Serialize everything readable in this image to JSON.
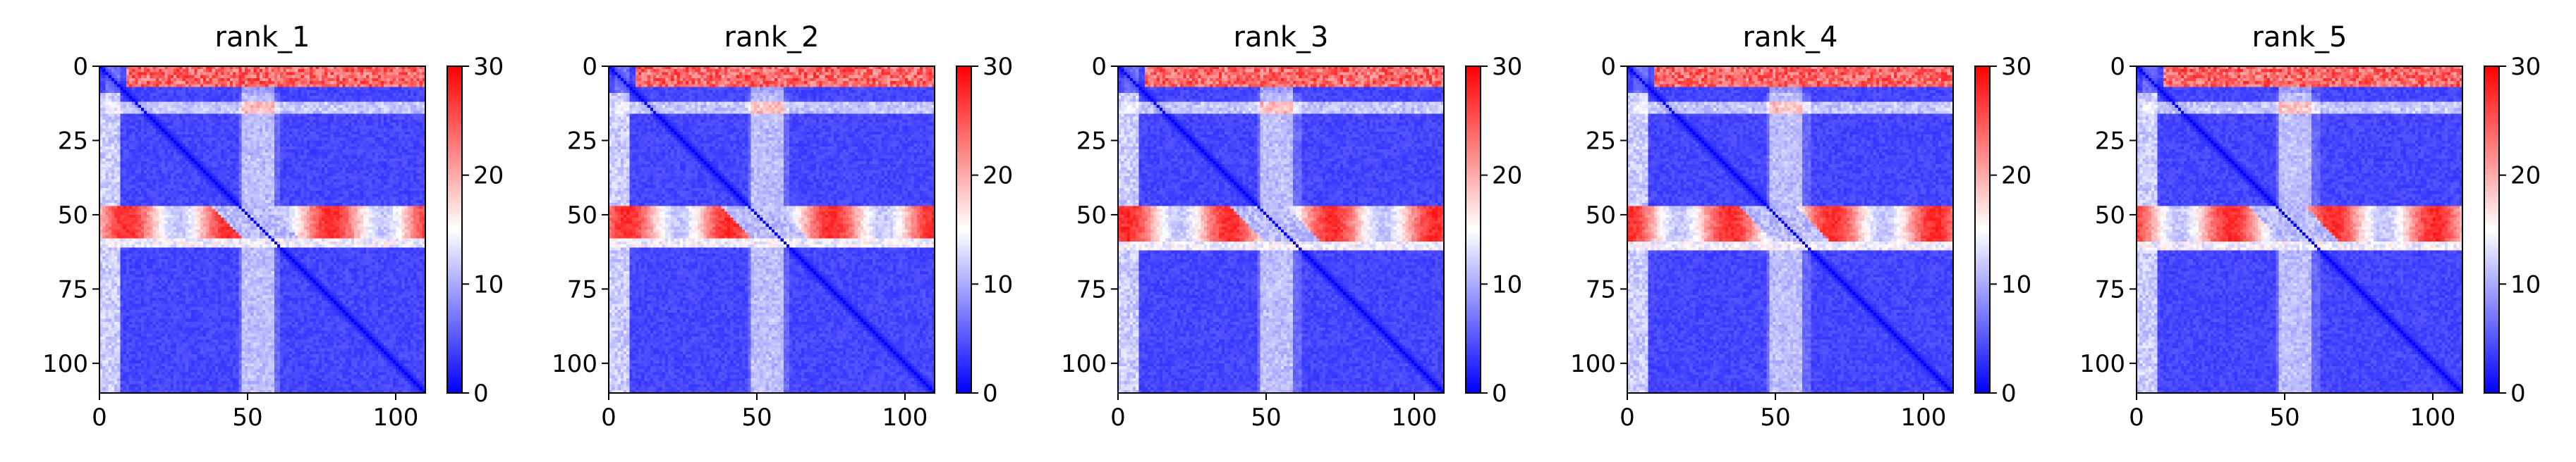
{
  "chart_data": [
    {
      "type": "heatmap",
      "title": "rank_1",
      "matrix_size": 110,
      "x_ticks": [
        "0",
        "50",
        "100"
      ],
      "y_ticks": [
        "0",
        "25",
        "50",
        "75",
        "100"
      ],
      "colorbar": {
        "min": 0,
        "max": 30,
        "ticks": [
          "0",
          "10",
          "20",
          "30"
        ],
        "colormap": "bwr"
      },
      "feature_bands": {
        "top_band_rows": [
          0,
          6
        ],
        "mid_band_rows": [
          47,
          60
        ],
        "light_column": [
          48,
          58
        ],
        "light_row": [
          12,
          15
        ]
      }
    },
    {
      "type": "heatmap",
      "title": "rank_2",
      "matrix_size": 110,
      "x_ticks": [
        "0",
        "50",
        "100"
      ],
      "y_ticks": [
        "0",
        "25",
        "50",
        "75",
        "100"
      ],
      "colorbar": {
        "min": 0,
        "max": 30,
        "ticks": [
          "0",
          "10",
          "20",
          "30"
        ],
        "colormap": "bwr"
      },
      "feature_bands": {
        "top_band_rows": [
          0,
          6
        ],
        "mid_band_rows": [
          47,
          60
        ],
        "light_column": [
          48,
          58
        ],
        "light_row": [
          12,
          15
        ]
      }
    },
    {
      "type": "heatmap",
      "title": "rank_3",
      "matrix_size": 110,
      "x_ticks": [
        "0",
        "50",
        "100"
      ],
      "y_ticks": [
        "0",
        "25",
        "50",
        "75",
        "100"
      ],
      "colorbar": {
        "min": 0,
        "max": 30,
        "ticks": [
          "0",
          "10",
          "20",
          "30"
        ],
        "colormap": "bwr"
      },
      "feature_bands": {
        "top_band_rows": [
          0,
          6
        ],
        "mid_band_rows": [
          47,
          61
        ],
        "light_column": [
          48,
          58
        ],
        "light_row": [
          12,
          15
        ]
      }
    },
    {
      "type": "heatmap",
      "title": "rank_4",
      "matrix_size": 110,
      "x_ticks": [
        "0",
        "50",
        "100"
      ],
      "y_ticks": [
        "0",
        "25",
        "50",
        "75",
        "100"
      ],
      "colorbar": {
        "min": 0,
        "max": 30,
        "ticks": [
          "0",
          "10",
          "20",
          "30"
        ],
        "colormap": "bwr"
      },
      "feature_bands": {
        "top_band_rows": [
          0,
          6
        ],
        "mid_band_rows": [
          47,
          61
        ],
        "light_column": [
          48,
          58
        ],
        "light_row": [
          12,
          15
        ]
      }
    },
    {
      "type": "heatmap",
      "title": "rank_5",
      "matrix_size": 110,
      "x_ticks": [
        "0",
        "50",
        "100"
      ],
      "y_ticks": [
        "0",
        "25",
        "50",
        "75",
        "100"
      ],
      "colorbar": {
        "min": 0,
        "max": 30,
        "ticks": [
          "0",
          "10",
          "20",
          "30"
        ],
        "colormap": "bwr"
      },
      "feature_bands": {
        "top_band_rows": [
          0,
          6
        ],
        "mid_band_rows": [
          47,
          61
        ],
        "light_column": [
          48,
          58
        ],
        "light_row": [
          12,
          15
        ]
      }
    }
  ]
}
